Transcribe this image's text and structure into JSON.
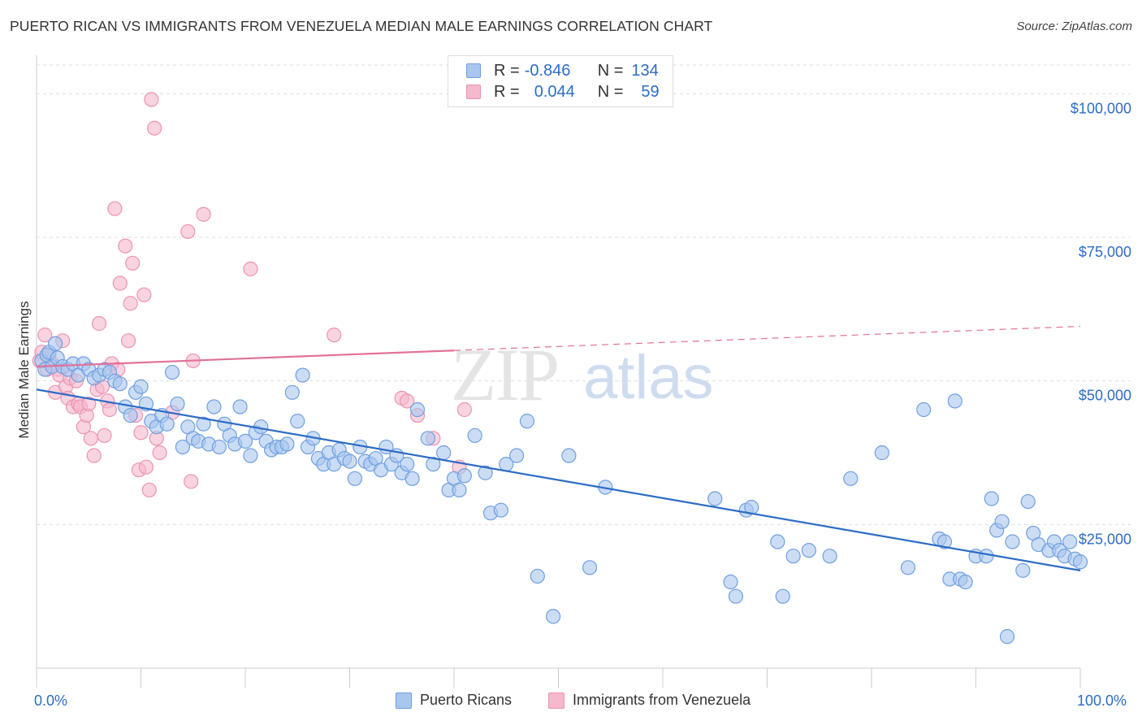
{
  "title": "PUERTO RICAN VS IMMIGRANTS FROM VENEZUELA MEDIAN MALE EARNINGS CORRELATION CHART",
  "source": "Source: ZipAtlas.com",
  "watermark": {
    "zip": "ZIP",
    "atlas": "atlas"
  },
  "legend": {
    "r_label": "R =",
    "n_label": "N =",
    "rows": [
      {
        "r": "-0.846",
        "n": "134"
      },
      {
        "r": "0.044",
        "n": "59"
      }
    ]
  },
  "colors": {
    "blue": "#2d6cc6",
    "blue_fill": "#a9c6ee",
    "blue_stroke": "#6f9fe0",
    "pink": "#e2709a",
    "pink_fill": "#f5b8cc",
    "pink_stroke": "#ec93b2",
    "grid": "#dddddd",
    "axis_text": "#2d6cc6"
  },
  "chart_data": {
    "type": "scatter",
    "title": "PUERTO RICAN VS IMMIGRANTS FROM VENEZUELA MEDIAN MALE EARNINGS CORRELATION CHART",
    "xlabel": "",
    "ylabel": "Median Male Earnings",
    "xlim": [
      0,
      100
    ],
    "ylim": [
      0,
      105000
    ],
    "x_tick_labels": [
      "0.0%",
      "100.0%"
    ],
    "y_ticks": [
      25000,
      50000,
      75000,
      100000
    ],
    "y_tick_labels": [
      "$25,000",
      "$50,000",
      "$75,000",
      "$100,000"
    ],
    "grid": true,
    "legend_position": "top-center",
    "series": [
      {
        "name": "Puerto Ricans",
        "color": "#2d6cc6",
        "r": -0.846,
        "n": 134,
        "trend": {
          "x": [
            0,
            100
          ],
          "y": [
            48500,
            17000
          ],
          "style": "solid"
        },
        "points": [
          [
            0.5,
            53500
          ],
          [
            0.8,
            52000
          ],
          [
            1.0,
            54500
          ],
          [
            1.2,
            55000
          ],
          [
            1.5,
            52500
          ],
          [
            1.8,
            56500
          ],
          [
            2.0,
            54000
          ],
          [
            2.5,
            52500
          ],
          [
            3.0,
            52000
          ],
          [
            3.5,
            53000
          ],
          [
            4.0,
            51000
          ],
          [
            4.5,
            53000
          ],
          [
            5.0,
            52000
          ],
          [
            5.5,
            50500
          ],
          [
            6.0,
            51000
          ],
          [
            6.5,
            52000
          ],
          [
            7.0,
            51500
          ],
          [
            7.5,
            50000
          ],
          [
            8.0,
            49500
          ],
          [
            8.5,
            45500
          ],
          [
            9.0,
            44000
          ],
          [
            9.5,
            48000
          ],
          [
            10.0,
            49000
          ],
          [
            10.5,
            46000
          ],
          [
            11.0,
            43000
          ],
          [
            11.5,
            42000
          ],
          [
            12.0,
            44000
          ],
          [
            12.5,
            42500
          ],
          [
            13.0,
            51500
          ],
          [
            13.5,
            46000
          ],
          [
            14.0,
            38500
          ],
          [
            14.5,
            42000
          ],
          [
            15.0,
            40000
          ],
          [
            15.5,
            39500
          ],
          [
            16.0,
            42500
          ],
          [
            16.5,
            39000
          ],
          [
            17.0,
            45500
          ],
          [
            17.5,
            38500
          ],
          [
            18.0,
            42500
          ],
          [
            18.5,
            40500
          ],
          [
            19.0,
            39000
          ],
          [
            19.5,
            45500
          ],
          [
            20.0,
            39500
          ],
          [
            20.5,
            37000
          ],
          [
            21.0,
            41000
          ],
          [
            21.5,
            42000
          ],
          [
            22.0,
            39500
          ],
          [
            22.5,
            38000
          ],
          [
            23.0,
            38500
          ],
          [
            23.5,
            38500
          ],
          [
            24.0,
            39000
          ],
          [
            24.5,
            48000
          ],
          [
            25.0,
            43000
          ],
          [
            25.5,
            51000
          ],
          [
            26.0,
            38500
          ],
          [
            26.5,
            40000
          ],
          [
            27.0,
            36500
          ],
          [
            27.5,
            35500
          ],
          [
            28.0,
            37500
          ],
          [
            28.5,
            35500
          ],
          [
            29.0,
            38000
          ],
          [
            29.5,
            36500
          ],
          [
            30.0,
            36000
          ],
          [
            30.5,
            33000
          ],
          [
            31.0,
            38500
          ],
          [
            31.5,
            36000
          ],
          [
            32.0,
            35500
          ],
          [
            32.5,
            36500
          ],
          [
            33.0,
            34500
          ],
          [
            33.5,
            38500
          ],
          [
            34.0,
            35500
          ],
          [
            34.5,
            37000
          ],
          [
            35.0,
            34000
          ],
          [
            35.5,
            35500
          ],
          [
            36.0,
            33000
          ],
          [
            36.5,
            45000
          ],
          [
            37.5,
            40000
          ],
          [
            38.0,
            35500
          ],
          [
            39.0,
            37500
          ],
          [
            39.5,
            31000
          ],
          [
            40.0,
            33000
          ],
          [
            40.5,
            31000
          ],
          [
            41.0,
            33500
          ],
          [
            42.0,
            40500
          ],
          [
            43.0,
            34000
          ],
          [
            43.5,
            27000
          ],
          [
            44.5,
            27500
          ],
          [
            45.0,
            35500
          ],
          [
            46.0,
            37000
          ],
          [
            47.0,
            43000
          ],
          [
            48.0,
            16000
          ],
          [
            49.5,
            9000
          ],
          [
            51.0,
            37000
          ],
          [
            53.0,
            17500
          ],
          [
            54.5,
            31500
          ],
          [
            65.0,
            29500
          ],
          [
            66.5,
            15000
          ],
          [
            67.0,
            12500
          ],
          [
            68.0,
            27500
          ],
          [
            68.5,
            28000
          ],
          [
            71.0,
            22000
          ],
          [
            71.5,
            12500
          ],
          [
            72.5,
            19500
          ],
          [
            74.0,
            20500
          ],
          [
            76.0,
            19500
          ],
          [
            78.0,
            33000
          ],
          [
            81.0,
            37500
          ],
          [
            83.5,
            17500
          ],
          [
            85.0,
            45000
          ],
          [
            86.5,
            22500
          ],
          [
            87.0,
            22000
          ],
          [
            87.5,
            15500
          ],
          [
            88.0,
            46500
          ],
          [
            88.5,
            15500
          ],
          [
            89.0,
            15000
          ],
          [
            90.0,
            19500
          ],
          [
            91.0,
            19500
          ],
          [
            91.5,
            29500
          ],
          [
            92.0,
            24000
          ],
          [
            92.5,
            25500
          ],
          [
            93.0,
            5500
          ],
          [
            93.5,
            22000
          ],
          [
            94.5,
            17000
          ],
          [
            95.0,
            29000
          ],
          [
            95.5,
            23500
          ],
          [
            96.0,
            21500
          ],
          [
            97.0,
            20500
          ],
          [
            97.5,
            22000
          ],
          [
            98.0,
            20500
          ],
          [
            98.5,
            19500
          ],
          [
            99.0,
            22000
          ],
          [
            99.5,
            19000
          ],
          [
            100.0,
            18500
          ]
        ]
      },
      {
        "name": "Immigrants from Venezuela",
        "color": "#e2709a",
        "r": 0.044,
        "n": 59,
        "trend": {
          "x": [
            0,
            100
          ],
          "y": [
            52500,
            59500
          ],
          "solid_until_x": 40,
          "style": "solid-then-dashed"
        },
        "points": [
          [
            0.3,
            53500
          ],
          [
            0.5,
            55000
          ],
          [
            0.8,
            58000
          ],
          [
            1.0,
            52000
          ],
          [
            1.2,
            54500
          ],
          [
            1.5,
            53000
          ],
          [
            1.8,
            48000
          ],
          [
            2.0,
            52000
          ],
          [
            2.2,
            51000
          ],
          [
            2.5,
            57000
          ],
          [
            2.8,
            49000
          ],
          [
            3.0,
            47000
          ],
          [
            3.2,
            50500
          ],
          [
            3.5,
            45500
          ],
          [
            3.8,
            50000
          ],
          [
            4.0,
            46000
          ],
          [
            4.2,
            45500
          ],
          [
            4.5,
            42000
          ],
          [
            4.8,
            44000
          ],
          [
            5.0,
            46000
          ],
          [
            5.2,
            40000
          ],
          [
            5.5,
            37000
          ],
          [
            5.8,
            48500
          ],
          [
            6.0,
            60000
          ],
          [
            6.3,
            49000
          ],
          [
            6.5,
            40500
          ],
          [
            6.8,
            46500
          ],
          [
            7.0,
            45000
          ],
          [
            7.2,
            53000
          ],
          [
            7.5,
            80000
          ],
          [
            7.8,
            52000
          ],
          [
            8.0,
            67000
          ],
          [
            8.5,
            73500
          ],
          [
            8.8,
            57000
          ],
          [
            9.0,
            63500
          ],
          [
            9.2,
            70500
          ],
          [
            9.5,
            44000
          ],
          [
            9.8,
            34500
          ],
          [
            10.0,
            41000
          ],
          [
            10.3,
            65000
          ],
          [
            10.5,
            35000
          ],
          [
            10.8,
            31000
          ],
          [
            11.0,
            99000
          ],
          [
            11.3,
            94000
          ],
          [
            11.5,
            40000
          ],
          [
            11.8,
            37500
          ],
          [
            13.0,
            44500
          ],
          [
            14.5,
            76000
          ],
          [
            14.8,
            32500
          ],
          [
            15.0,
            53500
          ],
          [
            16.0,
            79000
          ],
          [
            20.5,
            69500
          ],
          [
            28.5,
            58000
          ],
          [
            35.0,
            47000
          ],
          [
            35.5,
            46500
          ],
          [
            36.5,
            44000
          ],
          [
            38.0,
            40000
          ],
          [
            40.5,
            35000
          ],
          [
            41.0,
            45000
          ]
        ]
      }
    ]
  }
}
